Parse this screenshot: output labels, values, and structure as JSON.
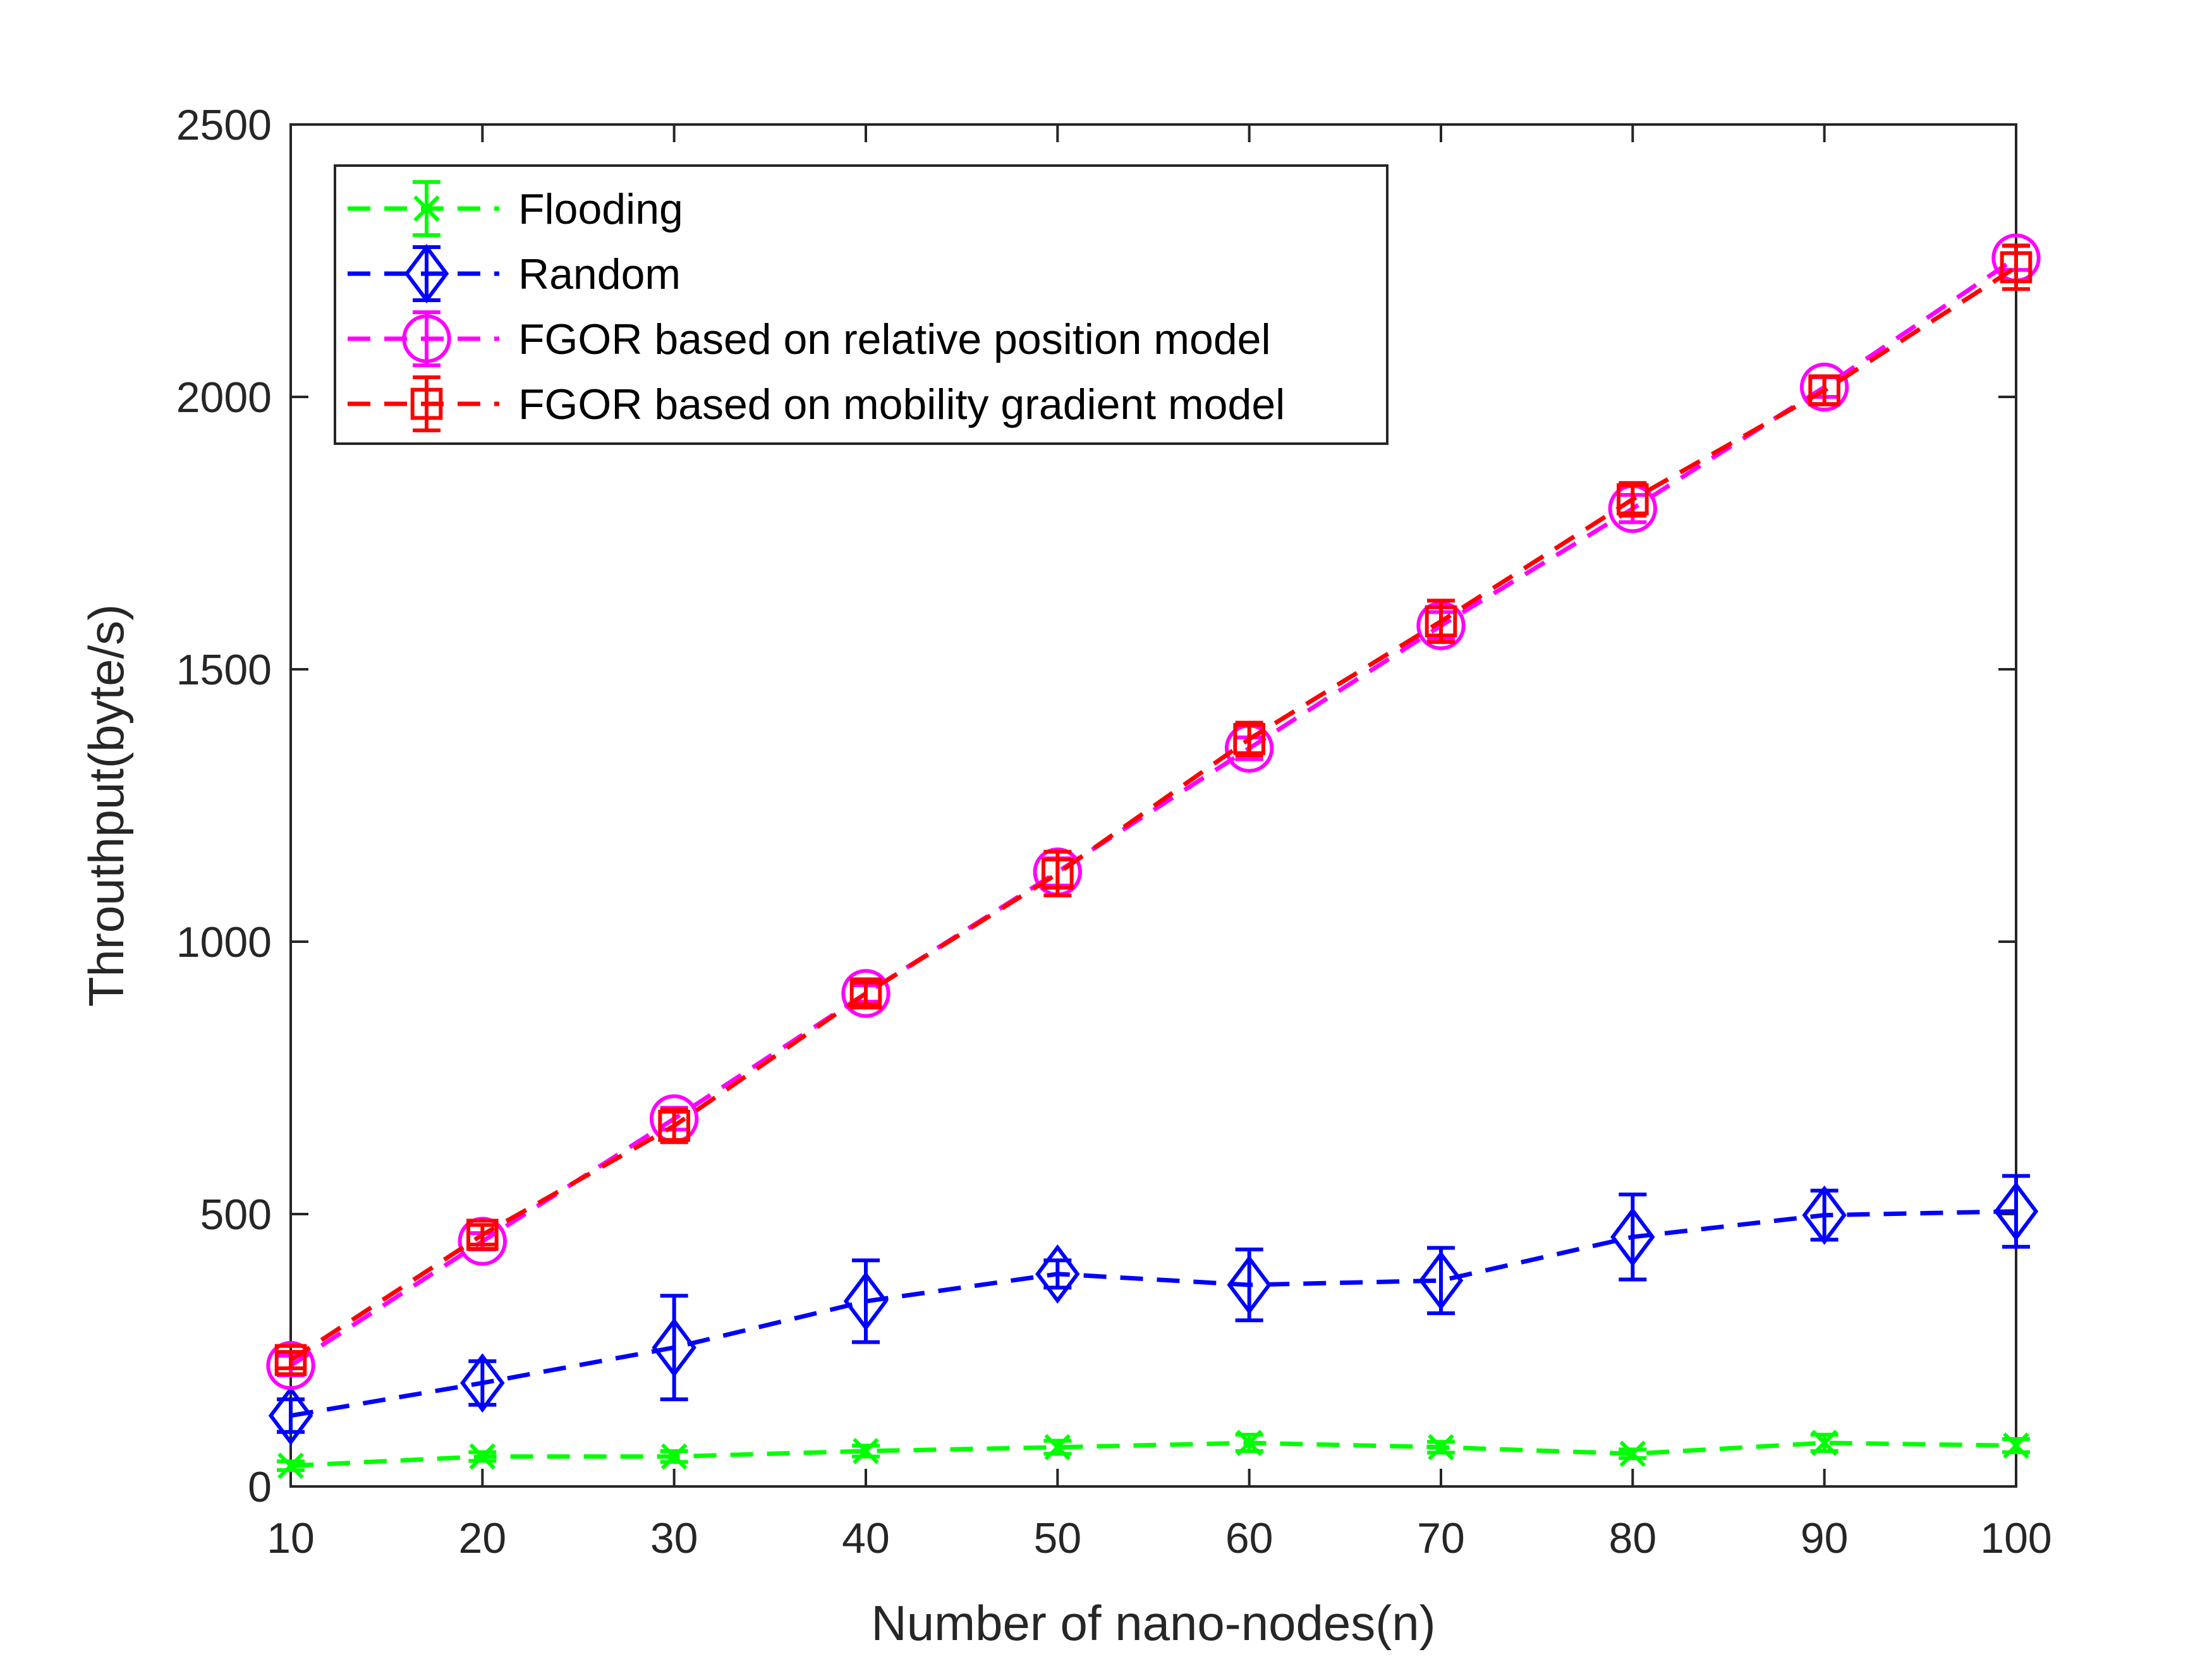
{
  "chart_data": {
    "type": "line",
    "title": "",
    "xlabel": "Number of nano-nodes(n)",
    "ylabel": "Throuthput(byte/s)",
    "xlim": [
      10,
      100
    ],
    "ylim": [
      0,
      2500
    ],
    "xticks": [
      10,
      20,
      30,
      40,
      50,
      60,
      70,
      80,
      90,
      100
    ],
    "yticks": [
      0,
      500,
      1000,
      1500,
      2000,
      2500
    ],
    "grid": false,
    "legend_position": "top-left",
    "x": [
      10,
      20,
      30,
      40,
      50,
      60,
      70,
      80,
      90,
      100
    ],
    "series": [
      {
        "name": "Flooding",
        "color": "#00ff00",
        "marker": "x",
        "values": [
          38,
          55,
          55,
          65,
          72,
          80,
          72,
          60,
          80,
          75
        ],
        "errors": [
          8,
          8,
          10,
          10,
          12,
          15,
          10,
          8,
          15,
          12
        ]
      },
      {
        "name": "Random",
        "color": "#0000ff",
        "marker": "diamond",
        "values": [
          130,
          190,
          255,
          340,
          390,
          370,
          378,
          458,
          498,
          505
        ],
        "errors": [
          30,
          40,
          95,
          75,
          25,
          65,
          60,
          78,
          45,
          65
        ]
      },
      {
        "name": "FGOR based on relative position model",
        "color": "#ff00ff",
        "marker": "circle",
        "values": [
          222,
          450,
          675,
          905,
          1128,
          1355,
          1580,
          1795,
          2018,
          2255
        ],
        "errors": [
          18,
          15,
          20,
          15,
          25,
          20,
          25,
          25,
          18,
          22
        ]
      },
      {
        "name": "FGOR based on mobility gradient model",
        "color": "#ff0000",
        "marker": "square",
        "values": [
          232,
          462,
          662,
          905,
          1125,
          1372,
          1588,
          1812,
          2012,
          2238
        ],
        "errors": [
          15,
          18,
          30,
          20,
          40,
          30,
          38,
          30,
          25,
          40
        ]
      }
    ]
  }
}
